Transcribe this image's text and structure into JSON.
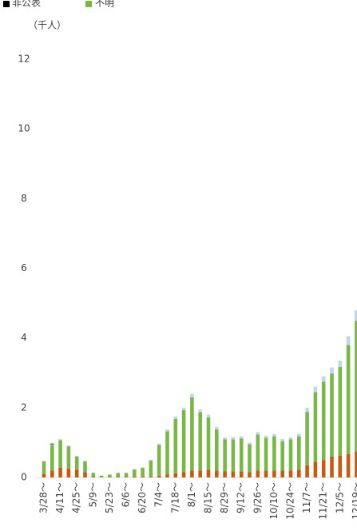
{
  "chart_data": {
    "type": "stacked_bar",
    "unit_label": "（千人）",
    "categories": [
      "3/28～",
      null,
      "4/11～",
      null,
      "4/25～",
      null,
      "5/9～",
      null,
      "5/23～",
      null,
      "6/6～",
      null,
      "6/20～",
      null,
      "7/4～",
      null,
      "7/18～",
      null,
      "8/1～",
      null,
      "8/15～",
      null,
      "8/29～",
      null,
      "9/12～",
      null,
      "9/26～",
      null,
      "10/10～",
      null,
      "10/24～",
      null,
      "11/7～",
      null,
      "11/21～",
      null,
      "12/5～",
      null,
      "12/19～"
    ],
    "series": [
      {
        "color": "#c55a11",
        "values": [
          0.1,
          0.2,
          0.28,
          0.25,
          0.22,
          0.15,
          0.03,
          0.01,
          0.01,
          0.02,
          0.02,
          0.03,
          0.03,
          0.03,
          0.05,
          0.08,
          0.12,
          0.15,
          0.2,
          0.2,
          0.22,
          0.2,
          0.18,
          0.17,
          0.17,
          0.15,
          0.2,
          0.2,
          0.2,
          0.2,
          0.2,
          0.22,
          0.35,
          0.45,
          0.5,
          0.6,
          0.62,
          0.67,
          0.75
        ]
      },
      {
        "name": "不明",
        "color": "#7ab648",
        "values": [
          0.36,
          0.72,
          0.79,
          0.64,
          0.38,
          0.31,
          0.1,
          0.04,
          0.07,
          0.11,
          0.11,
          0.2,
          0.25,
          0.46,
          0.88,
          1.24,
          1.56,
          1.78,
          2.1,
          1.67,
          1.5,
          1.18,
          0.91,
          0.92,
          0.95,
          0.8,
          1.03,
          0.94,
          0.98,
          0.84,
          0.89,
          0.96,
          1.53,
          2.0,
          2.25,
          2.38,
          2.55,
          3.13,
          3.75
        ]
      },
      {
        "color": "#bdd7ee",
        "values": [
          0.02,
          0.03,
          0.03,
          0.03,
          0.02,
          0.02,
          0.01,
          0,
          0,
          0,
          0,
          0,
          0,
          0.01,
          0.04,
          0.06,
          0.07,
          0.07,
          0.1,
          0.08,
          0.08,
          0.07,
          0.06,
          0.06,
          0.06,
          0.05,
          0.07,
          0.06,
          0.07,
          0.06,
          0.06,
          0.07,
          0.12,
          0.15,
          0.15,
          0.17,
          0.18,
          0.25,
          0.3
        ]
      },
      {
        "name": "非公表",
        "color": "#000000",
        "values": [
          0,
          0.02,
          0,
          0,
          0,
          0,
          0,
          0,
          0,
          0,
          0,
          0,
          0,
          0,
          0,
          0,
          0,
          0,
          0,
          0,
          0,
          0,
          0,
          0,
          0,
          0,
          0,
          0,
          0,
          0,
          0,
          0,
          0,
          0,
          0,
          0,
          0,
          0,
          0
        ]
      }
    ],
    "ylim": [
      0,
      12
    ],
    "yticks": [
      0,
      2,
      4,
      6,
      8,
      10,
      12
    ]
  }
}
